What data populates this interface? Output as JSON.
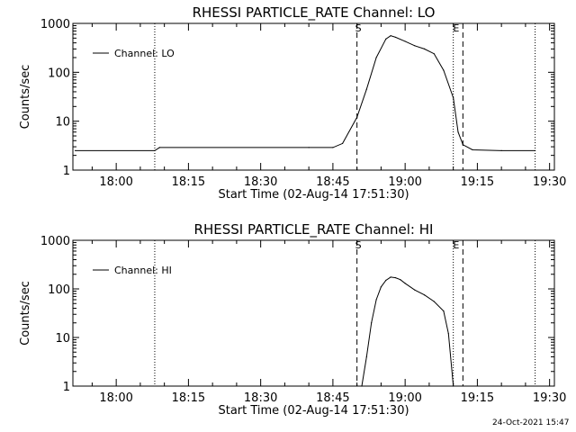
{
  "footer_timestamp": "24-Oct-2021 15:47",
  "chart_data": [
    {
      "type": "line",
      "title": "RHESSI PARTICLE_RATE Channel: LO",
      "xlabel": "Start Time (02-Aug-14 17:51:30)",
      "ylabel": "Counts/sec",
      "y_scale": "log",
      "ylim": [
        1,
        1000
      ],
      "y_ticks": [
        1,
        10,
        100,
        1000
      ],
      "y_tick_labels": [
        "1",
        "10",
        "100",
        "1000"
      ],
      "x_range": [
        "17:51",
        "19:31"
      ],
      "x_ticks": [
        "18:00",
        "18:15",
        "18:30",
        "18:45",
        "19:00",
        "19:15",
        "19:30"
      ],
      "legend": {
        "label": "Channel: LO",
        "position": "top-left"
      },
      "markers": {
        "dotted_lines": [
          "18:08",
          "19:10",
          "19:27"
        ],
        "dashed_lines": [
          {
            "time": "18:50",
            "label": "S"
          },
          {
            "time": "19:12",
            "label": "E"
          }
        ]
      },
      "series": [
        {
          "x": [
            "17:51:30",
            "18:08",
            "18:09",
            "18:40",
            "18:45",
            "18:47",
            "18:50",
            "18:52",
            "18:54",
            "18:56",
            "18:57",
            "18:58",
            "19:00",
            "19:02",
            "19:04",
            "19:06",
            "19:08",
            "19:10",
            "19:11",
            "19:12",
            "19:14",
            "19:20",
            "19:27"
          ],
          "y": [
            2.5,
            2.5,
            2.9,
            2.9,
            2.9,
            3.5,
            12,
            45,
            200,
            480,
            560,
            520,
            430,
            350,
            300,
            240,
            110,
            30,
            6,
            3.3,
            2.6,
            2.5,
            2.5
          ]
        }
      ]
    },
    {
      "type": "line",
      "title": "RHESSI PARTICLE_RATE Channel: HI",
      "xlabel": "Start Time (02-Aug-14 17:51:30)",
      "ylabel": "Counts/sec",
      "y_scale": "log",
      "ylim": [
        1,
        1000
      ],
      "y_ticks": [
        1,
        10,
        100,
        1000
      ],
      "y_tick_labels": [
        "1",
        "10",
        "100",
        "1000"
      ],
      "x_range": [
        "17:51",
        "19:31"
      ],
      "x_ticks": [
        "18:00",
        "18:15",
        "18:30",
        "18:45",
        "19:00",
        "19:15",
        "19:30"
      ],
      "legend": {
        "label": "Channel: HI",
        "position": "top-left"
      },
      "markers": {
        "dotted_lines": [
          "18:08",
          "19:10",
          "19:27"
        ],
        "dashed_lines": [
          {
            "time": "18:50",
            "label": "S"
          },
          {
            "time": "19:12",
            "label": "E"
          }
        ]
      },
      "series": [
        {
          "x": [
            "18:51",
            "18:52",
            "18:53",
            "18:54",
            "18:55",
            "18:56",
            "18:57",
            "18:58",
            "18:59",
            "19:00",
            "19:02",
            "19:04",
            "19:06",
            "19:08",
            "19:09",
            "19:10"
          ],
          "y": [
            1,
            4,
            20,
            60,
            110,
            150,
            175,
            170,
            155,
            130,
            95,
            75,
            55,
            35,
            12,
            1
          ]
        }
      ]
    }
  ]
}
